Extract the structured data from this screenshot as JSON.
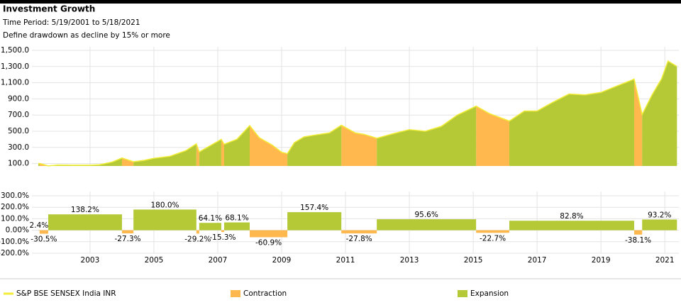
{
  "header": {
    "title": "Investment Growth",
    "time_period": "Time Period: 5/19/2001 to 5/18/2021",
    "note": "Define drawdown as decline by 15% or more"
  },
  "chart_data": [
    {
      "type": "area",
      "xlim": [
        2001.18,
        2021.44
      ],
      "ylim": [
        70,
        1500
      ],
      "yticks": [
        {
          "value": 100,
          "label": "100.0"
        },
        {
          "value": 300,
          "label": "300.0"
        },
        {
          "value": 500,
          "label": "500.0"
        },
        {
          "value": 700,
          "label": "700.0"
        },
        {
          "value": 900,
          "label": "900.0"
        },
        {
          "value": 1100,
          "label": "1,100.0"
        },
        {
          "value": 1300,
          "label": "1,300.0"
        },
        {
          "value": 1500,
          "label": "1,500.0"
        }
      ],
      "grid": true,
      "x": [
        2001.38,
        2001.42,
        2001.69,
        2002.0,
        2002.5,
        2003.0,
        2003.3,
        2003.7,
        2004.0,
        2004.36,
        2004.7,
        2005.0,
        2005.5,
        2006.0,
        2006.33,
        2006.42,
        2006.8,
        2007.11,
        2007.2,
        2007.6,
        2008.0,
        2008.3,
        2008.7,
        2009.0,
        2009.18,
        2009.4,
        2009.7,
        2010.0,
        2010.5,
        2010.87,
        2011.3,
        2011.6,
        2011.98,
        2012.5,
        2013.0,
        2013.5,
        2014.0,
        2014.5,
        2015.09,
        2015.5,
        2016.13,
        2016.6,
        2017.0,
        2017.5,
        2018.0,
        2018.5,
        2019.0,
        2019.5,
        2020.04,
        2020.29,
        2020.6,
        2020.9,
        2021.1,
        2021.38
      ],
      "series": [
        {
          "name": "S&P BSE SENSEX India INR",
          "color": "#f2ee3a",
          "values": [
            100,
            102,
            71,
            82,
            80,
            80,
            85,
            120,
            169,
            123,
            140,
            165,
            190,
            260,
            344,
            244,
            330,
            400,
            339,
            400,
            570,
            420,
            330,
            240,
            223,
            360,
            430,
            450,
            480,
            574,
            480,
            460,
            414,
            470,
            520,
            500,
            560,
            700,
            810,
            720,
            626,
            750,
            750,
            860,
            960,
            950,
            980,
            1060,
            1144,
            708,
            950,
            1150,
            1368,
            1300
          ]
        }
      ]
    },
    {
      "type": "bar",
      "xlim": [
        2001.18,
        2021.44
      ],
      "ylim": [
        -200,
        300
      ],
      "xticks": [
        2003,
        2005,
        2007,
        2009,
        2011,
        2013,
        2015,
        2017,
        2019,
        2021
      ],
      "yticks": [
        {
          "value": -200,
          "label": "-200.0%"
        },
        {
          "value": -100,
          "label": "-100.0%"
        },
        {
          "value": 0,
          "label": "0.00%"
        },
        {
          "value": 100,
          "label": "100.0%"
        },
        {
          "value": 200,
          "label": "200.0%"
        },
        {
          "value": 300,
          "label": "300.0%"
        }
      ],
      "series": [
        {
          "name": "Contraction",
          "color": "#ffb84d",
          "start": [
            2001.42,
            2004.0,
            2006.33,
            2007.11,
            2008.0,
            2010.87,
            2015.09,
            2020.04
          ],
          "end": [
            2001.69,
            2004.36,
            2006.42,
            2007.2,
            2009.18,
            2011.98,
            2016.13,
            2020.29
          ],
          "values": [
            -30.5,
            -27.3,
            -29.2,
            -15.3,
            -60.9,
            -27.8,
            -22.7,
            -38.1
          ],
          "value_labels": [
            "-30.5%",
            "-27.3%",
            "-29.2%",
            "-15.3%",
            "-60.9%",
            "-27.8%",
            "-22.7%",
            "-38.1%"
          ]
        },
        {
          "name": "Expansion",
          "color": "#b5c936",
          "start": [
            2001.38,
            2001.69,
            2004.36,
            2006.42,
            2007.2,
            2009.18,
            2011.98,
            2016.13,
            2020.29
          ],
          "end": [
            2001.42,
            2004.0,
            2006.33,
            2007.11,
            2008.0,
            2010.87,
            2015.09,
            2020.04,
            2021.38
          ],
          "values": [
            2.4,
            138.2,
            180.0,
            64.1,
            68.1,
            157.4,
            95.6,
            82.8,
            93.2
          ],
          "value_labels": [
            "2.4%",
            "138.2%",
            "180.0%",
            "64.1%",
            "68.1%",
            "157.4%",
            "95.6%",
            "82.8%",
            "93.2%"
          ]
        }
      ]
    }
  ]
}
